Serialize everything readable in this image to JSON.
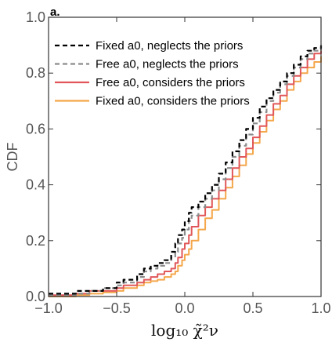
{
  "chart_data": {
    "type": "line",
    "panel_label": "a.",
    "xlabel": "log₁₀ χ̃²ν",
    "ylabel": "CDF",
    "xlim": [
      -1.0,
      1.0
    ],
    "ylim": [
      0.0,
      1.0
    ],
    "xticks": [
      "−1.0",
      "−0.5",
      "0.0",
      "0.5",
      "1.0"
    ],
    "yticks": [
      "0.0",
      "0.2",
      "0.4",
      "0.6",
      "0.8",
      "1.0"
    ],
    "grid": false,
    "legend_position": "top-left",
    "series": [
      {
        "name": "Fixed a0, neglects the priors",
        "color": "#000000",
        "dash": "dashed",
        "x": [
          -1.0,
          -0.85,
          -0.8,
          -0.7,
          -0.6,
          -0.5,
          -0.45,
          -0.35,
          -0.3,
          -0.25,
          -0.2,
          -0.15,
          -0.1,
          -0.07,
          -0.05,
          -0.02,
          0.0,
          0.03,
          0.05,
          0.1,
          0.15,
          0.2,
          0.25,
          0.3,
          0.35,
          0.4,
          0.45,
          0.5,
          0.55,
          0.6,
          0.65,
          0.7,
          0.75,
          0.8,
          0.85,
          0.9,
          0.95,
          1.0
        ],
        "y": [
          0.01,
          0.01,
          0.02,
          0.02,
          0.03,
          0.05,
          0.06,
          0.08,
          0.1,
          0.11,
          0.12,
          0.13,
          0.16,
          0.19,
          0.22,
          0.24,
          0.27,
          0.3,
          0.32,
          0.34,
          0.37,
          0.4,
          0.44,
          0.48,
          0.52,
          0.56,
          0.6,
          0.64,
          0.68,
          0.71,
          0.74,
          0.77,
          0.8,
          0.83,
          0.86,
          0.88,
          0.89,
          0.9
        ]
      },
      {
        "name": "Free a0, neglects the priors",
        "color": "#8c8c8c",
        "dash": "dashed",
        "x": [
          -1.0,
          -0.85,
          -0.8,
          -0.7,
          -0.6,
          -0.5,
          -0.45,
          -0.35,
          -0.3,
          -0.25,
          -0.2,
          -0.15,
          -0.1,
          -0.07,
          -0.05,
          -0.02,
          0.0,
          0.03,
          0.05,
          0.1,
          0.15,
          0.2,
          0.25,
          0.3,
          0.35,
          0.4,
          0.45,
          0.5,
          0.55,
          0.6,
          0.65,
          0.7,
          0.75,
          0.8,
          0.85,
          0.9,
          0.95,
          1.0
        ],
        "y": [
          0.005,
          0.005,
          0.01,
          0.02,
          0.03,
          0.04,
          0.05,
          0.07,
          0.09,
          0.1,
          0.11,
          0.12,
          0.14,
          0.16,
          0.19,
          0.21,
          0.24,
          0.27,
          0.29,
          0.32,
          0.35,
          0.38,
          0.42,
          0.46,
          0.5,
          0.54,
          0.58,
          0.62,
          0.66,
          0.7,
          0.73,
          0.76,
          0.79,
          0.82,
          0.85,
          0.87,
          0.88,
          0.89
        ]
      },
      {
        "name": "Free a0, considers the priors",
        "color": "#e15759",
        "dash": "solid",
        "x": [
          -1.0,
          -0.85,
          -0.8,
          -0.7,
          -0.6,
          -0.5,
          -0.45,
          -0.35,
          -0.3,
          -0.25,
          -0.2,
          -0.15,
          -0.1,
          -0.07,
          -0.05,
          -0.02,
          0.0,
          0.03,
          0.05,
          0.1,
          0.15,
          0.2,
          0.25,
          0.3,
          0.35,
          0.4,
          0.45,
          0.5,
          0.55,
          0.6,
          0.65,
          0.7,
          0.75,
          0.8,
          0.85,
          0.9,
          0.95,
          1.0
        ],
        "y": [
          0.005,
          0.005,
          0.01,
          0.02,
          0.02,
          0.03,
          0.04,
          0.05,
          0.06,
          0.07,
          0.08,
          0.09,
          0.1,
          0.12,
          0.14,
          0.17,
          0.19,
          0.22,
          0.25,
          0.29,
          0.32,
          0.35,
          0.38,
          0.42,
          0.46,
          0.5,
          0.53,
          0.57,
          0.61,
          0.65,
          0.69,
          0.72,
          0.76,
          0.79,
          0.82,
          0.85,
          0.87,
          0.88
        ]
      },
      {
        "name": "Fixed a0, considers the priors",
        "color": "#f4a74b",
        "dash": "solid",
        "x": [
          -1.0,
          -0.85,
          -0.8,
          -0.7,
          -0.6,
          -0.5,
          -0.45,
          -0.35,
          -0.3,
          -0.25,
          -0.2,
          -0.15,
          -0.1,
          -0.07,
          -0.05,
          -0.02,
          0.0,
          0.03,
          0.05,
          0.1,
          0.15,
          0.2,
          0.25,
          0.3,
          0.35,
          0.4,
          0.45,
          0.5,
          0.55,
          0.6,
          0.65,
          0.7,
          0.75,
          0.8,
          0.85,
          0.9,
          0.95,
          1.0
        ],
        "y": [
          0.0,
          0.0,
          0.005,
          0.01,
          0.015,
          0.02,
          0.03,
          0.04,
          0.05,
          0.055,
          0.06,
          0.07,
          0.08,
          0.09,
          0.11,
          0.13,
          0.15,
          0.17,
          0.2,
          0.24,
          0.28,
          0.31,
          0.35,
          0.39,
          0.43,
          0.47,
          0.51,
          0.55,
          0.59,
          0.63,
          0.67,
          0.7,
          0.74,
          0.77,
          0.8,
          0.82,
          0.84,
          0.86
        ]
      }
    ]
  }
}
